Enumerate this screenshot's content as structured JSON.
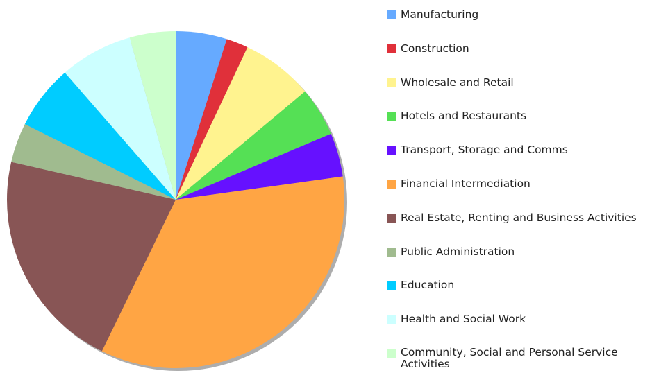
{
  "chart_data": {
    "type": "pie",
    "categories": [
      "Manufacturing",
      "Construction",
      "Wholesale and Retail",
      "Hotels and Restaurants",
      "Transport, Storage and Comms",
      "Financial Intermediation",
      "Real Estate, Renting and Business Activities",
      "Public Administration",
      "Education",
      "Health and Social Work",
      "Community, Social and Personal Service Activities"
    ],
    "values": [
      4.9,
      2.1,
      6.9,
      4.7,
      4.2,
      34.4,
      21.4,
      3.8,
      6.2,
      7.0,
      4.4
    ],
    "colors": [
      "#66aaff",
      "#e0303a",
      "#fff38f",
      "#55e055",
      "#6611ff",
      "#ffa544",
      "#885555",
      "#a0bb8f",
      "#00ccff",
      "#ccffff",
      "#ccffcc"
    ],
    "legend": "right"
  }
}
